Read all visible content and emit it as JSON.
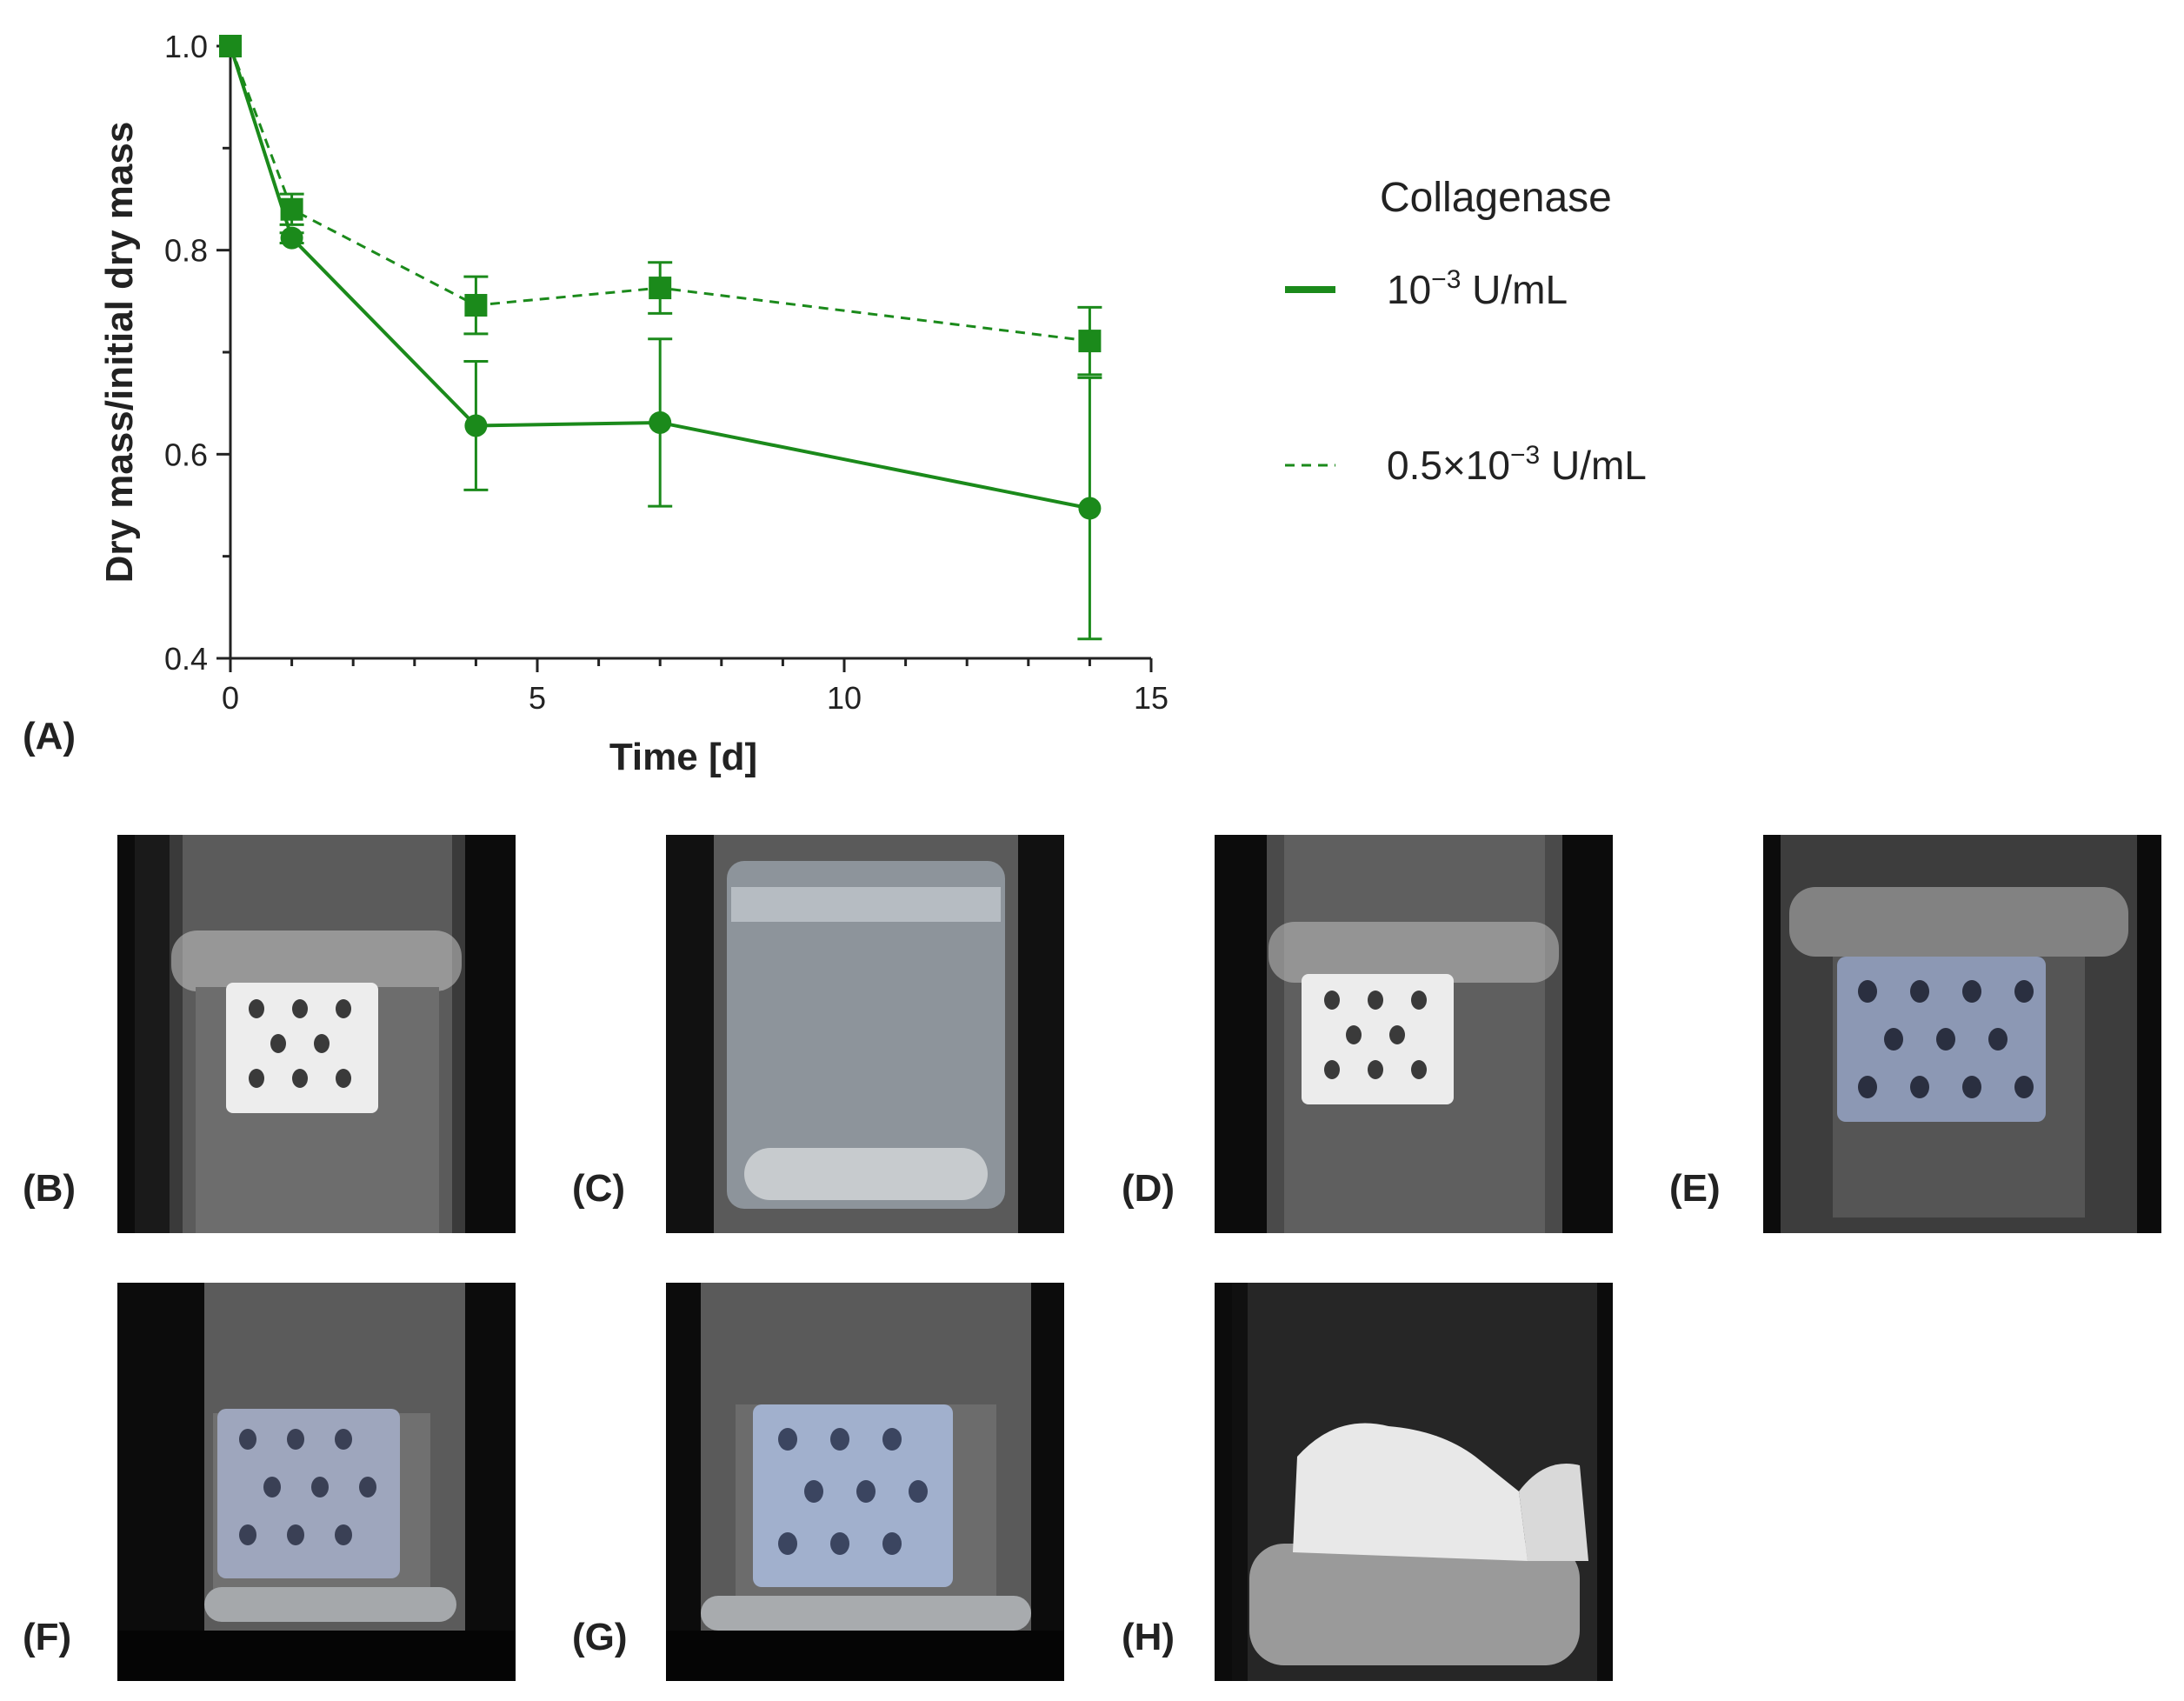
{
  "chart_data": {
    "type": "line",
    "xlabel": "Time [d]",
    "ylabel": "Dry mass/initial dry mass",
    "xlim": [
      0,
      15
    ],
    "ylim": [
      0.4,
      1.0
    ],
    "xticks": [
      "0",
      "5",
      "10",
      "15"
    ],
    "yticks": [
      "0.4",
      "0.6",
      "0.8",
      "1.0"
    ],
    "grid": false,
    "legend": {
      "title": "Collagenase",
      "placement": "right"
    },
    "x": [
      0,
      1,
      4,
      7,
      14
    ],
    "series": [
      {
        "name_base": "10",
        "name_exp": "−3",
        "name_unit": " U/mL",
        "style": "solid",
        "marker": "circle",
        "values": [
          1.0,
          0.812,
          0.628,
          0.631,
          0.547
        ],
        "err": [
          0.0,
          0.005,
          0.063,
          0.082,
          0.128
        ]
      },
      {
        "name_base": "0.5×10",
        "name_exp": "−3",
        "name_unit": " U/mL",
        "style": "dashed",
        "marker": "square",
        "values": [
          1.0,
          0.84,
          0.746,
          0.763,
          0.711
        ],
        "err": [
          0.0,
          0.015,
          0.028,
          0.025,
          0.033
        ]
      }
    ],
    "color": "#1b8a1b"
  },
  "panels": {
    "a": "(A)",
    "b": "(B)",
    "c": "(C)",
    "d": "(D)",
    "e": "(E)",
    "f": "(F)",
    "g": "(G)",
    "h": "(H)"
  }
}
